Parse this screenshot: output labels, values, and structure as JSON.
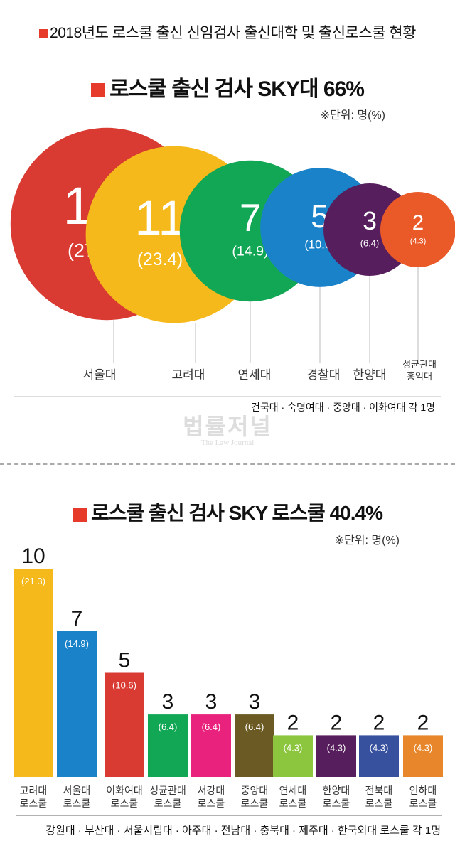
{
  "main_title": "2018년도 로스쿨 출신 신임검사 출신대학 및 출신로스쿨 현황",
  "watermark": {
    "korean": "법률저널",
    "english": "The Law Journal"
  },
  "colors": {
    "accent": "#e63a2a"
  },
  "chart_data": [
    {
      "type": "bubble",
      "title": "로스쿨 출신 검사 SKY대 66%",
      "unit_note": "※단위: 명(%)",
      "categories": [
        "서울대",
        "고려대",
        "연세대",
        "경찰대",
        "한양대",
        "성균관대\n홍익대"
      ],
      "category_lines": [
        [
          "서울대"
        ],
        [
          "고려대"
        ],
        [
          "연세대"
        ],
        [
          "경찰대"
        ],
        [
          "한양대"
        ],
        [
          "성균관대",
          "홍익대"
        ]
      ],
      "values": [
        13,
        11,
        7,
        5,
        3,
        2
      ],
      "value_labels": [
        "13",
        "11",
        "7",
        "5",
        "3",
        "2"
      ],
      "percents": [
        "(27.7)",
        "(23.4)",
        "(14.9)",
        "(10.6)",
        "(6.4)",
        "(4.3)"
      ],
      "colors": [
        "#d93a32",
        "#f6b91b",
        "#11a755",
        "#1a82c8",
        "#561e5c",
        "#ea5a28"
      ],
      "footnote": "건국대 · 숙명여대 · 중앙대 · 이화여대 각 1명"
    },
    {
      "type": "bar",
      "title": "로스쿨 출신 검사 SKY 로스쿨 40.4%",
      "unit_note": "※단위: 명(%)",
      "categories": [
        "고려대 로스쿨",
        "서울대 로스쿨",
        "이화여대 로스쿨",
        "성균관대 로스쿨",
        "서강대 로스쿨",
        "중앙대 로스쿨",
        "연세대 로스쿨",
        "한양대 로스쿨",
        "전북대 로스쿨",
        "인하대 로스쿨"
      ],
      "category_lines": [
        [
          "고려대",
          "로스쿨"
        ],
        [
          "서울대",
          "로스쿨"
        ],
        [
          "이화여대",
          "로스쿨"
        ],
        [
          "성균관대",
          "로스쿨"
        ],
        [
          "서강대",
          "로스쿨"
        ],
        [
          "중앙대",
          "로스쿨"
        ],
        [
          "연세대",
          "로스쿨"
        ],
        [
          "한양대",
          "로스쿨"
        ],
        [
          "전북대",
          "로스쿨"
        ],
        [
          "인하대",
          "로스쿨"
        ]
      ],
      "values": [
        10,
        7,
        5,
        3,
        3,
        3,
        2,
        2,
        2,
        2
      ],
      "value_labels": [
        "10",
        "7",
        "5",
        "3",
        "3",
        "3",
        "2",
        "2",
        "2",
        "2"
      ],
      "percents": [
        "(21.3)",
        "(14.9)",
        "(10.6)",
        "(6.4)",
        "(6.4)",
        "(6.4)",
        "(4.3)",
        "(4.3)",
        "(4.3)",
        "(4.3)"
      ],
      "colors": [
        "#f6b91b",
        "#1a82c8",
        "#d93a32",
        "#11a755",
        "#e9237d",
        "#6b5a23",
        "#8cc63e",
        "#561e5c",
        "#37519f",
        "#e7862a"
      ],
      "footnote": "강원대 · 부산대 · 서울시립대 · 아주대 · 전남대 · 충북대 · 제주대 · 한국외대 로스쿨 각 1명"
    }
  ]
}
